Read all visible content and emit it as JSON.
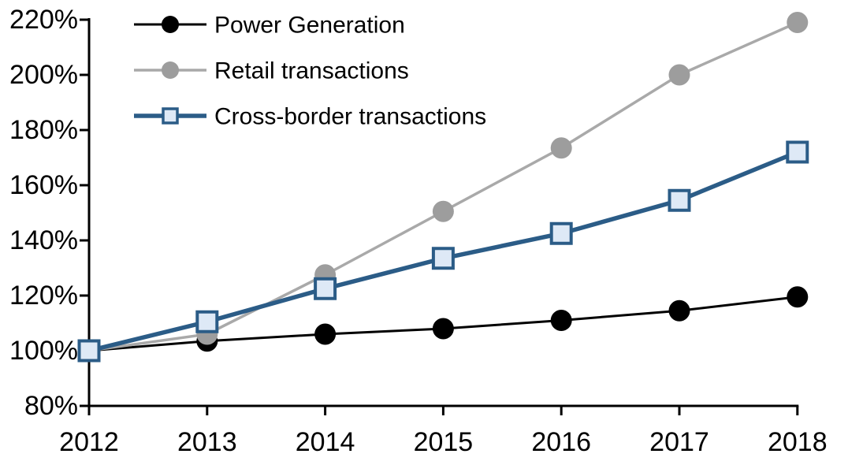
{
  "chart_data": {
    "type": "line",
    "title": "",
    "xlabel": "",
    "ylabel": "",
    "grid": false,
    "legend_position": "top-left-inside",
    "categories": [
      2012,
      2013,
      2014,
      2015,
      2016,
      2017,
      2018
    ],
    "x_tick_labels": [
      "2012",
      "2013",
      "2014",
      "2015",
      "2016",
      "2017",
      "2018"
    ],
    "ylim": [
      80,
      220
    ],
    "ytick_step": 20,
    "y_ticks": [
      {
        "value": 220,
        "label": "220%"
      },
      {
        "value": 200,
        "label": "200%"
      },
      {
        "value": 180,
        "label": "180%"
      },
      {
        "value": 160,
        "label": "160%"
      },
      {
        "value": 140,
        "label": "140%"
      },
      {
        "value": 120,
        "label": "120%"
      },
      {
        "value": 100,
        "label": "100%"
      },
      {
        "value": 80,
        "label": "80%"
      }
    ],
    "series": [
      {
        "name": "Power Generation",
        "slug": "power-generation",
        "marker": "circle",
        "line_color": "#000000",
        "marker_fill": "#000000",
        "marker_stroke": "none",
        "values": [
          100,
          103.5,
          106,
          108,
          111,
          114.5,
          119.5
        ]
      },
      {
        "name": "Retail transactions",
        "slug": "retail-transactions",
        "marker": "circle",
        "line_color": "#a9a9a9",
        "marker_fill": "#9d9d9d",
        "marker_stroke": "none",
        "values": [
          100,
          106,
          127.5,
          150.5,
          173.5,
          200,
          219
        ]
      },
      {
        "name": "Cross-border transactions",
        "slug": "cross-border-transactions",
        "marker": "square",
        "line_color": "#2b5c87",
        "marker_fill": "#dee9f6",
        "marker_stroke": "#2b5c87",
        "values": [
          100,
          110.5,
          122.5,
          133.5,
          142.5,
          154.5,
          172
        ]
      }
    ],
    "axis_color": "#000000"
  }
}
